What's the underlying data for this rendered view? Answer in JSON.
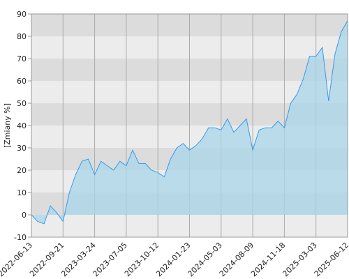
{
  "chart_data": {
    "type": "area",
    "y_label": "[Zmiany %]",
    "x": [
      "2022-06-13",
      "2022-07-04",
      "2022-07-25",
      "2022-08-15",
      "2022-09-02",
      "2022-09-21",
      "2022-11-01",
      "2022-12-08",
      "2023-01-17",
      "2023-02-21",
      "2023-03-24",
      "2023-04-14",
      "2023-05-08",
      "2023-05-29",
      "2023-06-16",
      "2023-07-05",
      "2023-07-26",
      "2023-08-16",
      "2023-09-05",
      "2023-09-22",
      "2023-10-12",
      "2023-11-01",
      "2023-11-21",
      "2023-12-12",
      "2024-01-03",
      "2024-01-23",
      "2024-02-12",
      "2024-03-01",
      "2024-03-21",
      "2024-04-12",
      "2024-05-03",
      "2024-05-23",
      "2024-06-12",
      "2024-07-01",
      "2024-07-19",
      "2024-08-09",
      "2024-08-29",
      "2024-09-18",
      "2024-10-08",
      "2024-10-28",
      "2024-11-18",
      "2024-12-06",
      "2025-01-02",
      "2025-01-22",
      "2025-02-11",
      "2025-03-03",
      "2025-03-21",
      "2025-04-09",
      "2025-04-30",
      "2025-05-21",
      "2025-06-12"
    ],
    "values": [
      0,
      -3,
      -4,
      4,
      1,
      -3,
      10,
      18,
      24,
      25,
      18,
      24,
      22,
      20,
      24,
      22,
      29,
      23,
      23,
      20,
      19,
      17,
      25,
      30,
      32,
      29,
      31,
      34,
      39,
      39,
      38,
      43,
      37,
      40,
      43,
      29,
      38,
      39,
      39,
      42,
      39,
      50,
      54,
      61,
      71,
      71,
      75,
      51,
      72,
      82,
      87
    ],
    "xticks": [
      "2022-06-13",
      "2022-09-21",
      "2023-03-24",
      "2023-07-05",
      "2023-10-12",
      "2024-01-23",
      "2024-05-03",
      "2024-08-09",
      "2024-11-18",
      "2025-03-03",
      "2025-06-12"
    ],
    "ylim": [
      -10,
      90
    ],
    "yticks": [
      -10,
      0,
      10,
      20,
      30,
      40,
      50,
      60,
      70,
      80,
      90
    ],
    "line_color": "#3399ee",
    "fill_color": "#a9d7ea",
    "grid": true
  }
}
